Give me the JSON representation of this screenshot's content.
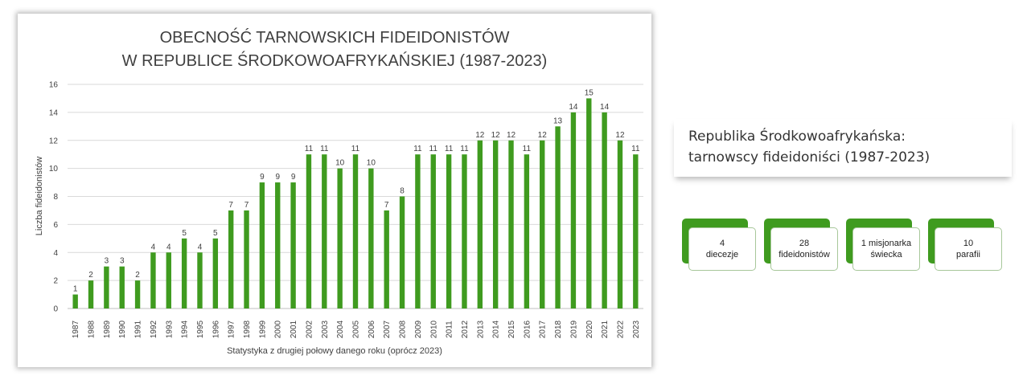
{
  "chart_data": {
    "type": "bar",
    "title": [
      "OBECNOŚĆ TARNOWSKICH FIDEIDONISTÓW",
      "W REPUBLICE ŚRODKOWOAFRYKAŃSKIEJ (1987-2023)"
    ],
    "xlabel": "Statystyka z drugiej połowy danego roku (oprócz 2023)",
    "ylabel": "Liczba fideidonistów",
    "ylim": [
      0,
      16
    ],
    "yticks": [
      0,
      2,
      4,
      6,
      8,
      10,
      12,
      14,
      16
    ],
    "grid": true,
    "bar_color": "#3f9b1f",
    "categories": [
      "1987",
      "1988",
      "1989",
      "1990",
      "1991",
      "1992",
      "1993",
      "1994",
      "1995",
      "1996",
      "1997",
      "1998",
      "1999",
      "2000",
      "2001",
      "2002",
      "2003",
      "2004",
      "2005",
      "2006",
      "2007",
      "2008",
      "2009",
      "2010",
      "2011",
      "2012",
      "2013",
      "2014",
      "2015",
      "2016",
      "2017",
      "2018",
      "2019",
      "2020",
      "2021",
      "2022",
      "2023"
    ],
    "values": [
      1,
      2,
      3,
      3,
      2,
      4,
      4,
      5,
      4,
      5,
      7,
      7,
      9,
      9,
      9,
      11,
      11,
      10,
      11,
      10,
      7,
      8,
      11,
      11,
      11,
      11,
      12,
      12,
      12,
      11,
      12,
      13,
      14,
      15,
      14,
      12,
      11
    ]
  },
  "info": {
    "line1": "Republika Środkowoafrykańska:",
    "line2": "tarnowscy fideidoniści (1987-2023)"
  },
  "stats": [
    {
      "line1": "4",
      "line2": "diecezje"
    },
    {
      "line1": "28",
      "line2": "fideidonistów"
    },
    {
      "line1": "1 misjonarka",
      "line2": "świecka"
    },
    {
      "line1": "10",
      "line2": "parafii"
    }
  ],
  "colors": {
    "accent": "#3f9b1f"
  }
}
